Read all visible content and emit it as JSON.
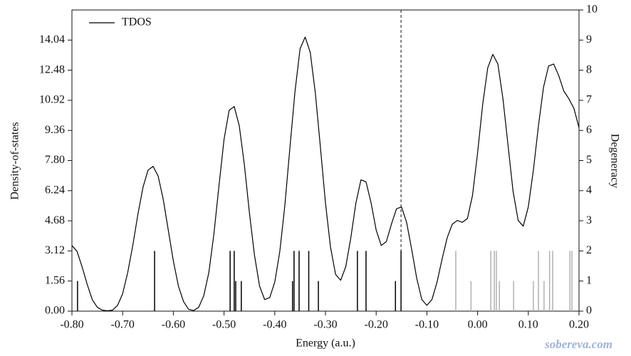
{
  "chart_data": {
    "type": "line",
    "x_label": "Energy (a.u.)",
    "y_label": "Density-of-states",
    "y2_label": "Degeneracy",
    "legend": "upper left",
    "watermark": "sobereva.com",
    "xlim": [
      -0.8,
      0.2
    ],
    "xticks": [
      {
        "value": -0.8,
        "label": "-0.80"
      },
      {
        "value": -0.7,
        "label": "-0.70"
      },
      {
        "value": -0.6,
        "label": "-0.60"
      },
      {
        "value": -0.5,
        "label": "-0.50"
      },
      {
        "value": -0.4,
        "label": "-0.40"
      },
      {
        "value": -0.3,
        "label": "-0.30"
      },
      {
        "value": -0.2,
        "label": "-0.20"
      },
      {
        "value": -0.1,
        "label": "-0.10"
      },
      {
        "value": 0,
        "label": "0.00"
      },
      {
        "value": 0.1,
        "label": "0.10"
      },
      {
        "value": 0.2,
        "label": "0.20"
      }
    ],
    "ylim": [
      0,
      15.6
    ],
    "yticks": [
      {
        "value": 0,
        "label": "0.00"
      },
      1.56,
      3.12,
      4.68,
      6.24,
      {
        "value": 7.8,
        "label": "7.80"
      },
      9.36,
      10.92,
      12.48,
      14.04
    ],
    "y2lim": [
      0,
      10
    ],
    "y2ticks": [
      0,
      1,
      2,
      3,
      4,
      5,
      6,
      7,
      8,
      9,
      10
    ],
    "series": [
      {
        "name": "TDOS",
        "color": "#000000",
        "x": [
          -0.8,
          -0.79,
          -0.78,
          -0.77,
          -0.76,
          -0.75,
          -0.74,
          -0.73,
          -0.72,
          -0.71,
          -0.7,
          -0.69,
          -0.68,
          -0.67,
          -0.66,
          -0.65,
          -0.64,
          -0.63,
          -0.62,
          -0.61,
          -0.6,
          -0.59,
          -0.58,
          -0.57,
          -0.56,
          -0.55,
          -0.54,
          -0.53,
          -0.52,
          -0.51,
          -0.5,
          -0.49,
          -0.48,
          -0.47,
          -0.46,
          -0.45,
          -0.44,
          -0.43,
          -0.42,
          -0.41,
          -0.4,
          -0.39,
          -0.38,
          -0.37,
          -0.36,
          -0.35,
          -0.34,
          -0.33,
          -0.32,
          -0.31,
          -0.3,
          -0.29,
          -0.28,
          -0.27,
          -0.26,
          -0.25,
          -0.24,
          -0.23,
          -0.22,
          -0.21,
          -0.2,
          -0.19,
          -0.18,
          -0.17,
          -0.16,
          -0.15,
          -0.14,
          -0.13,
          -0.12,
          -0.11,
          -0.1,
          -0.09,
          -0.08,
          -0.07,
          -0.06,
          -0.05,
          -0.04,
          -0.03,
          -0.02,
          -0.01,
          0,
          0.01,
          0.02,
          0.03,
          0.04,
          0.05,
          0.06,
          0.07,
          0.08,
          0.09,
          0.1,
          0.11,
          0.12,
          0.13,
          0.14,
          0.15,
          0.16,
          0.17,
          0.18,
          0.19,
          0.2
        ],
        "values": [
          3.4,
          3.1,
          2.3,
          1.4,
          0.6,
          0.2,
          0.05,
          0.02,
          0.05,
          0.3,
          0.9,
          2.0,
          3.4,
          5.0,
          6.4,
          7.3,
          7.5,
          7.0,
          5.8,
          4.2,
          2.6,
          1.3,
          0.5,
          0.1,
          0.03,
          0.2,
          0.8,
          2.0,
          4.0,
          6.5,
          8.9,
          10.4,
          10.6,
          9.6,
          7.6,
          5.1,
          2.9,
          1.3,
          0.6,
          0.7,
          1.5,
          3.1,
          5.5,
          8.5,
          11.4,
          13.6,
          14.2,
          13.4,
          11.3,
          8.5,
          5.6,
          3.3,
          1.9,
          1.6,
          2.3,
          3.8,
          5.6,
          6.8,
          6.7,
          5.6,
          4.2,
          3.4,
          3.6,
          4.5,
          5.3,
          5.4,
          4.6,
          3.2,
          1.7,
          0.6,
          0.3,
          0.6,
          1.5,
          2.7,
          3.8,
          4.5,
          4.7,
          4.6,
          4.8,
          6.0,
          8.2,
          10.7,
          12.6,
          13.3,
          12.8,
          11.0,
          8.6,
          6.2,
          4.7,
          4.4,
          5.4,
          7.3,
          9.6,
          11.6,
          12.7,
          12.8,
          12.2,
          11.4,
          11.0,
          10.5,
          9.5
        ]
      }
    ],
    "stick_series": [
      {
        "color": "#000000",
        "axis": "y2",
        "x": [
          -0.789,
          -0.637,
          -0.488,
          -0.48,
          -0.477,
          -0.466,
          -0.365,
          -0.362,
          -0.352,
          -0.333,
          -0.314,
          -0.237,
          -0.22,
          -0.162,
          -0.151
        ],
        "values": [
          1,
          2,
          2,
          2,
          1,
          1,
          1,
          2,
          2,
          2,
          1,
          2,
          2,
          1,
          2
        ]
      },
      {
        "color": "#b0b0b0",
        "axis": "y2",
        "x": [
          -0.043,
          -0.013,
          0.026,
          0.033,
          0.037,
          0.043,
          0.071,
          0.11,
          0.12,
          0.131,
          0.142,
          0.148,
          0.182,
          0.186
        ],
        "values": [
          2,
          1,
          2,
          2,
          2,
          1,
          1,
          1,
          2,
          1,
          2,
          2,
          2,
          2
        ]
      }
    ],
    "vline_x": -0.151
  }
}
